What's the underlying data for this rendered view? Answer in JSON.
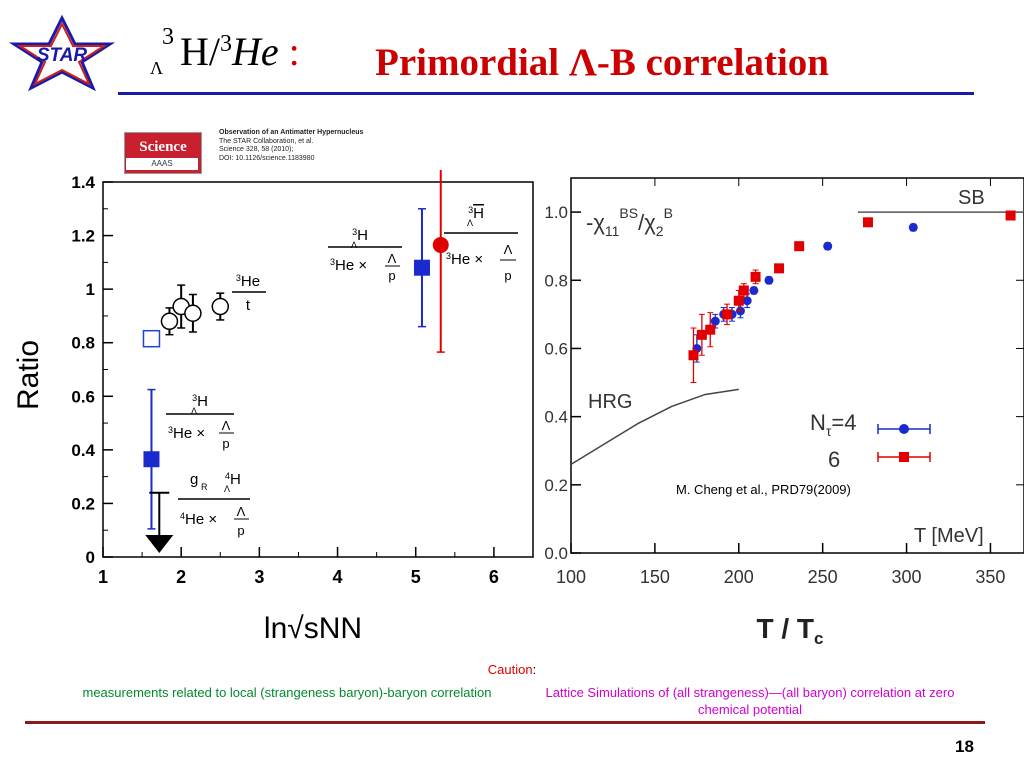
{
  "header": {
    "logo_text": "STAR",
    "title_left_formula": "H/",
    "title_left_sup1": "3",
    "title_left_sub1": "Λ",
    "title_left_sup2": "3",
    "title_left_he": "He",
    "title_colon": " :",
    "title_main": "Primordial Λ-B correlation",
    "colors": {
      "title_main": "#cc0000",
      "rule": "#1a1aa8",
      "logo_star": "#cc2020",
      "logo_outline": "#1a1aa8"
    }
  },
  "science_ref": {
    "badge": "Science",
    "badge_sub": "AAAS",
    "lines": [
      "Observation of an Antimatter Hypernucleus",
      "The STAR Collaboration, et al.",
      "Science 328, 58 (2010);",
      "DOI: 10.1126/science.1183980"
    ]
  },
  "chart_data": [
    {
      "type": "scatter",
      "title": "",
      "xlabel": "ln√sNN",
      "ylabel": "Ratio",
      "xlim": [
        1,
        6.5
      ],
      "ylim": [
        0,
        1.4
      ],
      "xticks": [
        "1",
        "2",
        "3",
        "4",
        "5",
        "6"
      ],
      "yticks": [
        "0",
        "0.2",
        "0.4",
        "0.6",
        "0.8",
        "1",
        "1.2",
        "1.4"
      ],
      "series": [
        {
          "marker": "open-circle",
          "color": "#000000",
          "points": [
            {
              "x": 1.85,
              "y": 0.88,
              "err": 0.05
            },
            {
              "x": 2.0,
              "y": 0.935,
              "err": 0.08
            },
            {
              "x": 2.15,
              "y": 0.91,
              "err": 0.07
            },
            {
              "x": 2.5,
              "y": 0.935,
              "err": 0.05
            }
          ]
        },
        {
          "marker": "open-square",
          "color": "#2244cc",
          "points": [
            {
              "x": 1.62,
              "y": 0.815,
              "err": 0
            }
          ]
        },
        {
          "marker": "filled-square",
          "color": "#1a2acc",
          "points": [
            {
              "x": 1.62,
              "y": 0.365,
              "err": 0.26
            },
            {
              "x": 5.08,
              "y": 1.08,
              "err": 0.22
            }
          ]
        },
        {
          "marker": "filled-circle",
          "color": "#e00000",
          "points": [
            {
              "x": 5.32,
              "y": 1.165,
              "err": 0.4
            }
          ]
        },
        {
          "marker": "upper-limit-arrow",
          "color": "#000000",
          "points": [
            {
              "x": 1.72,
              "y": 0.24,
              "to": 0.0
            }
          ]
        }
      ],
      "annotations": {
        "he3t": {
          "num": "He",
          "num_sup": "3",
          "den": "t"
        },
        "a1": {
          "num": "H",
          "num_sup": "3",
          "num_sub": "Λ",
          "den_pre": "He ×",
          "den_pre_sup": "3",
          "frac_num": "Λ",
          "frac_den": "p"
        },
        "a2": {
          "num": "H",
          "num_sup": "3",
          "num_sub": "Λ",
          "den_pre": "He ×",
          "den_pre_sup": "3",
          "frac_num": "Λ",
          "frac_den": "p"
        },
        "a3": {
          "num": "H",
          "num_sup": "3",
          "num_sub": "Λ",
          "den_pre": "He ×",
          "den_pre_sup": "3",
          "frac_num": "Λ",
          "frac_den": "p"
        },
        "a4": {
          "num_pre": "g",
          "num_pre_sub": "R",
          "num": "H",
          "num_sup": "4",
          "num_sub": "Λ",
          "den_pre": "He ×",
          "den_pre_sup": "4",
          "frac_num": "Λ",
          "frac_den": "p"
        }
      }
    },
    {
      "type": "scatter",
      "title": "",
      "xlabel": "T / Tc",
      "xlabel_inner": "T [MeV]",
      "ylabel_text": "-χ11BS/χ2B",
      "xlim": [
        100,
        370
      ],
      "ylim": [
        0.0,
        1.1
      ],
      "xticks": [
        "100",
        "150",
        "200",
        "250",
        "300",
        "350"
      ],
      "yticks": [
        "0.0",
        "0.2",
        "0.4",
        "0.6",
        "0.8",
        "1.0"
      ],
      "hrg_label": "HRG",
      "sb_label": "SB",
      "sb_value": 1.0,
      "sb_x_range": [
        271,
        370
      ],
      "hrg_curve": [
        {
          "x": 100,
          "y": 0.26
        },
        {
          "x": 120,
          "y": 0.32
        },
        {
          "x": 140,
          "y": 0.38
        },
        {
          "x": 160,
          "y": 0.43
        },
        {
          "x": 180,
          "y": 0.465
        },
        {
          "x": 200,
          "y": 0.48
        }
      ],
      "legend": [
        {
          "label": "Nτ=4",
          "color": "#1a2acc",
          "marker": "circle"
        },
        {
          "label": "6",
          "color": "#e00000",
          "marker": "square"
        }
      ],
      "series": [
        {
          "name": "Nτ=4",
          "color": "#1a2acc",
          "marker": "circle",
          "points": [
            {
              "x": 175,
              "y": 0.6,
              "err": 0.04
            },
            {
              "x": 186,
              "y": 0.68,
              "err": 0.02
            },
            {
              "x": 191,
              "y": 0.7,
              "err": 0.02
            },
            {
              "x": 196,
              "y": 0.7,
              "err": 0.02
            },
            {
              "x": 201,
              "y": 0.71,
              "err": 0.02
            },
            {
              "x": 205,
              "y": 0.74,
              "err": 0.02
            },
            {
              "x": 209,
              "y": 0.77,
              "err": 0.01
            },
            {
              "x": 218,
              "y": 0.8,
              "err": 0.01
            },
            {
              "x": 253,
              "y": 0.9,
              "err": 0.01
            },
            {
              "x": 304,
              "y": 0.955,
              "err": 0.01
            }
          ]
        },
        {
          "name": "6",
          "color": "#e00000",
          "marker": "square",
          "points": [
            {
              "x": 173,
              "y": 0.58,
              "err": 0.08
            },
            {
              "x": 178,
              "y": 0.64,
              "err": 0.06
            },
            {
              "x": 183,
              "y": 0.655,
              "err": 0.05
            },
            {
              "x": 193,
              "y": 0.7,
              "err": 0.03
            },
            {
              "x": 200,
              "y": 0.74,
              "err": 0.03
            },
            {
              "x": 203,
              "y": 0.77,
              "err": 0.02
            },
            {
              "x": 210,
              "y": 0.81,
              "err": 0.02
            },
            {
              "x": 224,
              "y": 0.835,
              "err": 0.01
            },
            {
              "x": 236,
              "y": 0.9,
              "err": 0.01
            },
            {
              "x": 277,
              "y": 0.97,
              "err": 0.01
            },
            {
              "x": 362,
              "y": 0.99,
              "err": 0.01
            }
          ]
        }
      ],
      "reference": "M. Cheng et al., PRD79(2009)"
    }
  ],
  "footer": {
    "caution_label": "Caution",
    "caution_colon": ":",
    "left_note": "measurements related to local (strangeness baryon)-baryon correlation",
    "right_note": "Lattice Simulations of (all strangeness)—(all baryon) correlation at zero chemical potential",
    "page_number": "18",
    "colors": {
      "caution": "#e00000",
      "left": "#008a2e",
      "right": "#d000d0",
      "rule": "#8b1a1a"
    }
  }
}
